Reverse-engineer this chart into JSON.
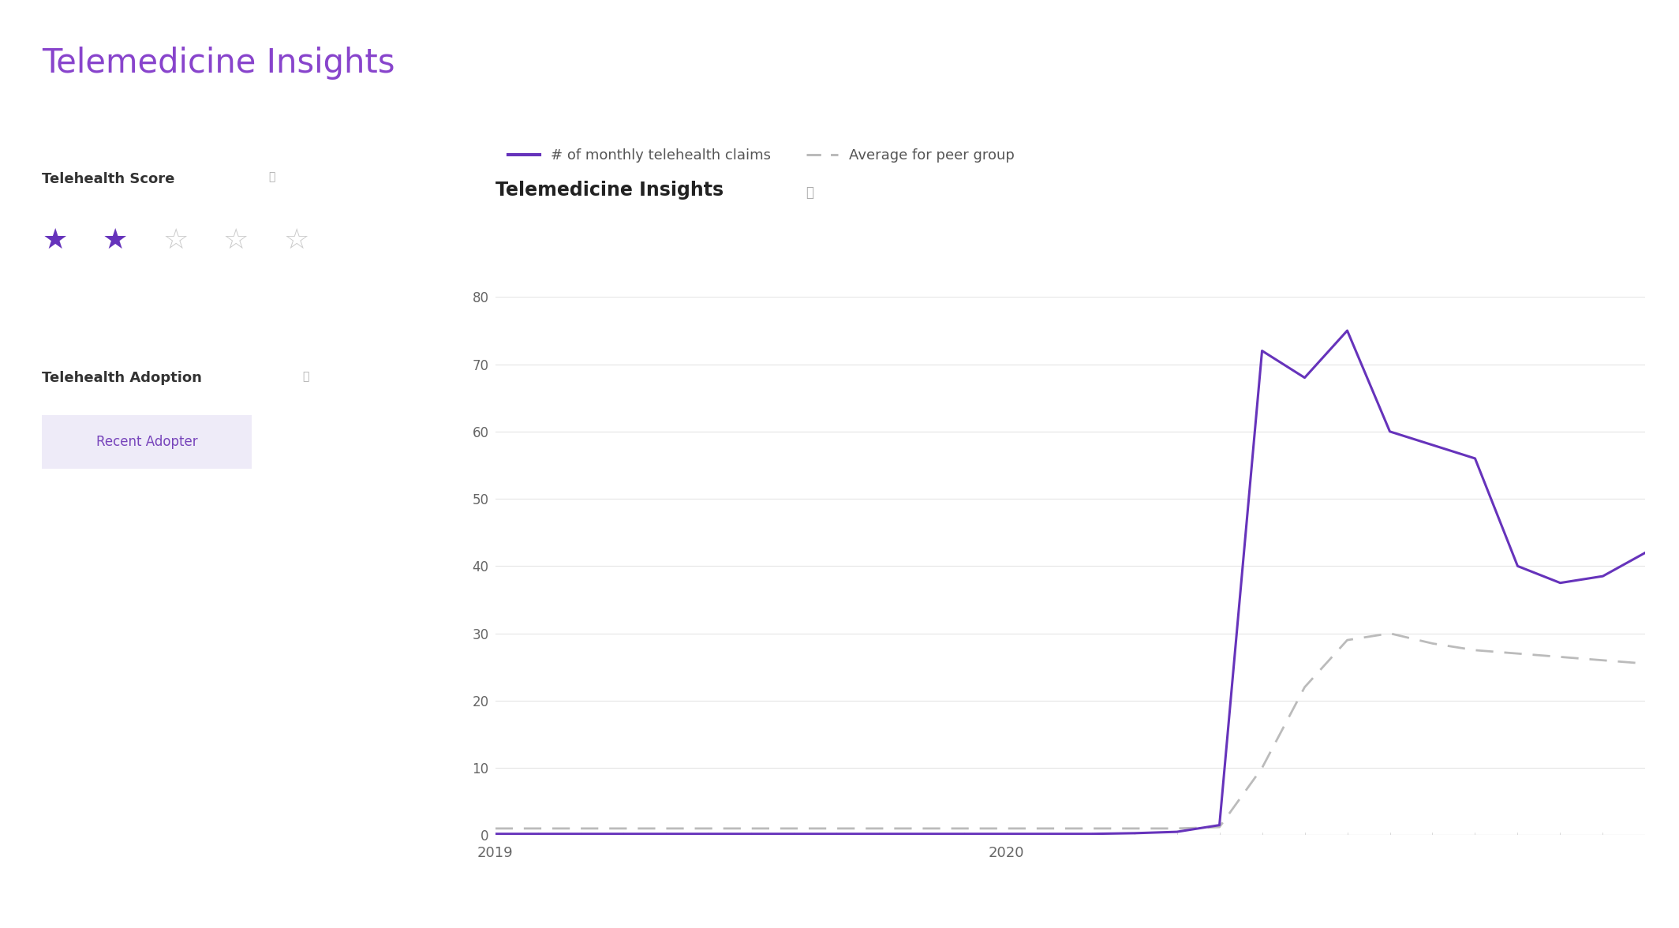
{
  "title_main": "Telemedicine Insights",
  "title_main_color": "#8844cc",
  "section_title": "Telemedicine Insights",
  "section_title_color": "#222222",
  "telehealth_score_label": "Telehealth Score",
  "telehealth_adoption_label": "Telehealth Adoption",
  "adoption_badge": "Recent Adopter",
  "adoption_badge_color": "#7744bb",
  "adoption_badge_bg": "#eeebf8",
  "stars_filled": 2,
  "stars_total": 5,
  "legend_line1": "# of monthly telehealth claims",
  "legend_line2": "Average for peer group",
  "purple_color": "#6633bb",
  "gray_color": "#bbbbbb",
  "background_color": "#ffffff",
  "ylim": [
    0,
    80
  ],
  "yticks": [
    0,
    10,
    20,
    30,
    40,
    50,
    60,
    70,
    80
  ],
  "physician_claims": [
    0.2,
    0.2,
    0.2,
    0.2,
    0.2,
    0.2,
    0.2,
    0.2,
    0.2,
    0.2,
    0.2,
    0.2,
    0.2,
    0.2,
    0.2,
    0.3,
    0.5,
    1.5,
    72.0,
    68.0,
    75.0,
    60.0,
    58.0,
    56.0,
    40.0,
    37.5,
    38.5,
    42.0
  ],
  "peer_avg": [
    1.0,
    1.0,
    1.0,
    1.0,
    1.0,
    1.0,
    1.0,
    1.0,
    1.0,
    1.0,
    1.0,
    1.0,
    1.0,
    1.0,
    1.0,
    1.0,
    1.0,
    1.2,
    10.0,
    22.0,
    29.0,
    30.0,
    28.5,
    27.5,
    27.0,
    26.5,
    26.0,
    25.5
  ],
  "n_months": 28,
  "jan2019_idx": 0,
  "jan2020_idx": 12
}
